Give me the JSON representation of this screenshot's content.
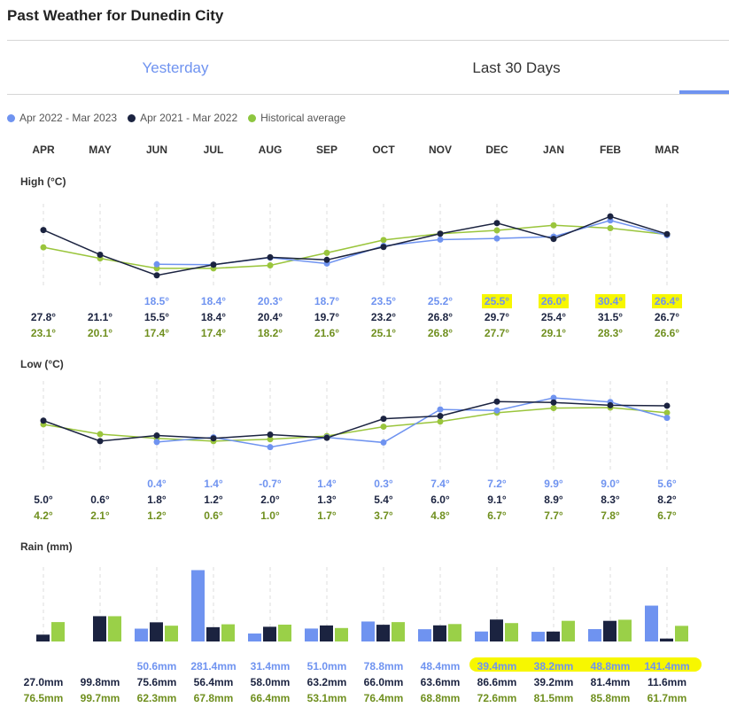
{
  "page_title": "Past Weather for Dunedin City",
  "tabs": [
    {
      "label": "Yesterday",
      "active": false
    },
    {
      "label": "Last 30 Days",
      "active": true
    }
  ],
  "legend": [
    {
      "label": "Apr 2022 - Mar 2023",
      "color": "#6f93f0"
    },
    {
      "label": "Apr 2021 - Mar 2022",
      "color": "#1b2340"
    },
    {
      "label": "Historical average",
      "color": "#8dc63f"
    }
  ],
  "months": [
    "APR",
    "MAY",
    "JUN",
    "JUL",
    "AUG",
    "SEP",
    "OCT",
    "NOV",
    "DEC",
    "JAN",
    "FEB",
    "MAR"
  ],
  "sections": {
    "high": "High (°C)",
    "low": "Low (°C)",
    "rain": "Rain (mm)"
  },
  "chart_data": [
    {
      "type": "line",
      "title": "High (°C)",
      "categories": [
        "APR",
        "MAY",
        "JUN",
        "JUL",
        "AUG",
        "SEP",
        "OCT",
        "NOV",
        "DEC",
        "JAN",
        "FEB",
        "MAR"
      ],
      "series": [
        {
          "name": "Apr 2022 - Mar 2023",
          "values": [
            null,
            null,
            18.5,
            18.4,
            20.3,
            18.7,
            23.5,
            25.2,
            25.5,
            26.0,
            30.4,
            26.4
          ],
          "labels": [
            "",
            "",
            "18.5°",
            "18.4°",
            "20.3°",
            "18.7°",
            "23.5°",
            "25.2°",
            "25.5°",
            "26.0°",
            "30.4°",
            "26.4°"
          ],
          "highlighted": [
            false,
            false,
            false,
            false,
            false,
            false,
            false,
            false,
            true,
            true,
            true,
            true
          ]
        },
        {
          "name": "Apr 2021 - Mar 2022",
          "values": [
            27.8,
            21.1,
            15.5,
            18.4,
            20.4,
            19.7,
            23.2,
            26.8,
            29.7,
            25.4,
            31.5,
            26.7
          ],
          "labels": [
            "27.8°",
            "21.1°",
            "15.5°",
            "18.4°",
            "20.4°",
            "19.7°",
            "23.2°",
            "26.8°",
            "29.7°",
            "25.4°",
            "31.5°",
            "26.7°"
          ]
        },
        {
          "name": "Historical average",
          "values": [
            23.1,
            20.1,
            17.4,
            17.4,
            18.2,
            21.6,
            25.1,
            26.8,
            27.7,
            29.1,
            28.3,
            26.6
          ],
          "labels": [
            "23.1°",
            "20.1°",
            "17.4°",
            "17.4°",
            "18.2°",
            "21.6°",
            "25.1°",
            "26.8°",
            "27.7°",
            "29.1°",
            "28.3°",
            "26.6°"
          ]
        }
      ]
    },
    {
      "type": "line",
      "title": "Low (°C)",
      "categories": [
        "APR",
        "MAY",
        "JUN",
        "JUL",
        "AUG",
        "SEP",
        "OCT",
        "NOV",
        "DEC",
        "JAN",
        "FEB",
        "MAR"
      ],
      "series": [
        {
          "name": "Apr 2022 - Mar 2023",
          "values": [
            null,
            null,
            0.4,
            1.4,
            -0.7,
            1.4,
            0.3,
            7.4,
            7.2,
            9.9,
            9.0,
            5.6
          ],
          "labels": [
            "",
            "",
            "0.4°",
            "1.4°",
            "-0.7°",
            "1.4°",
            "0.3°",
            "7.4°",
            "7.2°",
            "9.9°",
            "9.0°",
            "5.6°"
          ]
        },
        {
          "name": "Apr 2021 - Mar 2022",
          "values": [
            5.0,
            0.6,
            1.8,
            1.2,
            2.0,
            1.3,
            5.4,
            6.0,
            9.1,
            8.9,
            8.3,
            8.2
          ],
          "labels": [
            "5.0°",
            "0.6°",
            "1.8°",
            "1.2°",
            "2.0°",
            "1.3°",
            "5.4°",
            "6.0°",
            "9.1°",
            "8.9°",
            "8.3°",
            "8.2°"
          ]
        },
        {
          "name": "Historical average",
          "values": [
            4.2,
            2.1,
            1.2,
            0.6,
            1.0,
            1.7,
            3.7,
            4.8,
            6.7,
            7.7,
            7.8,
            6.7
          ],
          "labels": [
            "4.2°",
            "2.1°",
            "1.2°",
            "0.6°",
            "1.0°",
            "1.7°",
            "3.7°",
            "4.8°",
            "6.7°",
            "7.7°",
            "7.8°",
            "6.7°"
          ]
        }
      ]
    },
    {
      "type": "bar",
      "title": "Rain (mm)",
      "categories": [
        "APR",
        "MAY",
        "JUN",
        "JUL",
        "AUG",
        "SEP",
        "OCT",
        "NOV",
        "DEC",
        "JAN",
        "FEB",
        "MAR"
      ],
      "series": [
        {
          "name": "Apr 2022 - Mar 2023",
          "values": [
            null,
            null,
            50.6,
            281.4,
            31.4,
            51.0,
            78.8,
            48.4,
            39.4,
            38.2,
            48.8,
            141.4
          ],
          "labels": [
            "",
            "",
            "50.6mm",
            "281.4mm",
            "31.4mm",
            "51.0mm",
            "78.8mm",
            "48.4mm",
            "39.4mm",
            "38.2mm",
            "48.8mm",
            "141.4mm"
          ],
          "highlighted": [
            false,
            false,
            false,
            false,
            false,
            false,
            false,
            false,
            true,
            true,
            true,
            true
          ]
        },
        {
          "name": "Apr 2021 - Mar 2022",
          "values": [
            27.0,
            99.8,
            75.6,
            56.4,
            58.0,
            63.2,
            66.0,
            63.6,
            86.6,
            39.2,
            81.4,
            11.6
          ],
          "labels": [
            "27.0mm",
            "99.8mm",
            "75.6mm",
            "56.4mm",
            "58.0mm",
            "63.2mm",
            "66.0mm",
            "63.6mm",
            "86.6mm",
            "39.2mm",
            "81.4mm",
            "11.6mm"
          ]
        },
        {
          "name": "Historical average",
          "values": [
            76.5,
            99.7,
            62.3,
            67.8,
            66.4,
            53.1,
            76.4,
            68.8,
            72.6,
            81.5,
            85.8,
            61.7
          ],
          "labels": [
            "76.5mm",
            "99.7mm",
            "62.3mm",
            "67.8mm",
            "66.4mm",
            "53.1mm",
            "76.4mm",
            "68.8mm",
            "72.6mm",
            "81.5mm",
            "85.8mm",
            "61.7mm"
          ]
        }
      ]
    }
  ]
}
